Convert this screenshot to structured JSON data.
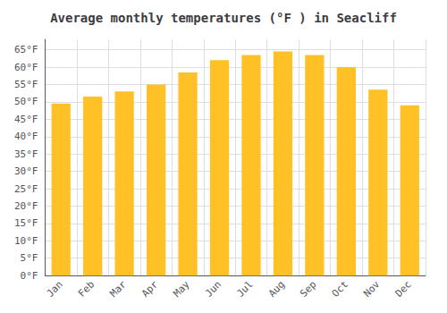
{
  "chart_data": {
    "type": "bar",
    "title": "Average monthly temperatures (°F ) in Seacliff",
    "categories": [
      "Jan",
      "Feb",
      "Mar",
      "Apr",
      "May",
      "Jun",
      "Jul",
      "Aug",
      "Sep",
      "Oct",
      "Nov",
      "Dec"
    ],
    "values": [
      49.5,
      51.5,
      53.0,
      55.0,
      58.5,
      62.0,
      63.5,
      64.5,
      63.5,
      60.0,
      53.5,
      49.0
    ],
    "color": "#FFC125",
    "ylim": [
      0,
      68
    ],
    "yticks": [
      {
        "value": 0,
        "label": "0°F"
      },
      {
        "value": 5,
        "label": "5°F"
      },
      {
        "value": 10,
        "label": "10°F"
      },
      {
        "value": 15,
        "label": "15°F"
      },
      {
        "value": 20,
        "label": "20°F"
      },
      {
        "value": 25,
        "label": "25°F"
      },
      {
        "value": 30,
        "label": "30°F"
      },
      {
        "value": 35,
        "label": "35°F"
      },
      {
        "value": 40,
        "label": "40°F"
      },
      {
        "value": 45,
        "label": "45°F"
      },
      {
        "value": 50,
        "label": "50°F"
      },
      {
        "value": 55,
        "label": "55°F"
      },
      {
        "value": 60,
        "label": "60°F"
      },
      {
        "value": 65,
        "label": "65°F"
      }
    ],
    "grid": true
  }
}
